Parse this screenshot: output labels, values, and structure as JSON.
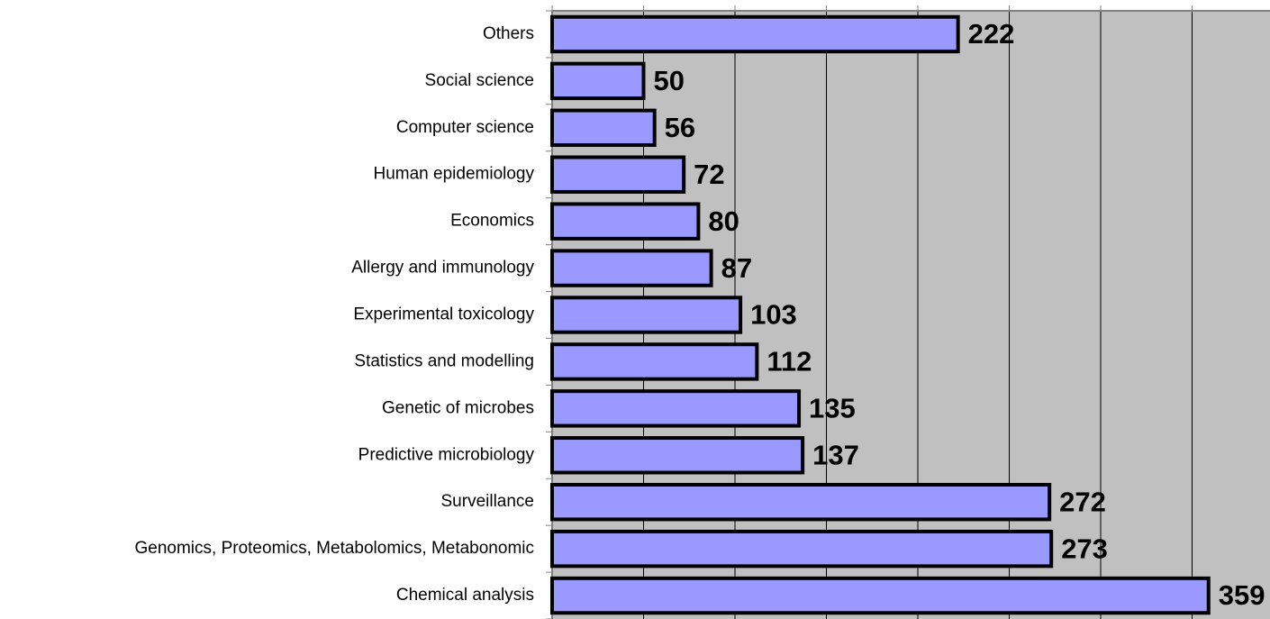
{
  "chart_data": {
    "type": "barh",
    "categories": [
      "Others",
      "Social science",
      "Computer science",
      "Human epidemiology",
      "Economics",
      "Allergy and immunology",
      "Experimental toxicology",
      "Statistics and modelling",
      "Genetic of microbes",
      "Predictive microbiology",
      "Surveillance",
      "Genomics, Proteomics, Metabolomics, Metabonomic",
      "Chemical analysis"
    ],
    "values": [
      222,
      50,
      56,
      72,
      80,
      87,
      103,
      112,
      135,
      137,
      272,
      273,
      359
    ],
    "color": "#9999ff",
    "xlim": [
      0,
      400
    ],
    "xticks": [
      0,
      50,
      100,
      150,
      200,
      250,
      300,
      350,
      400
    ],
    "grid": true
  }
}
